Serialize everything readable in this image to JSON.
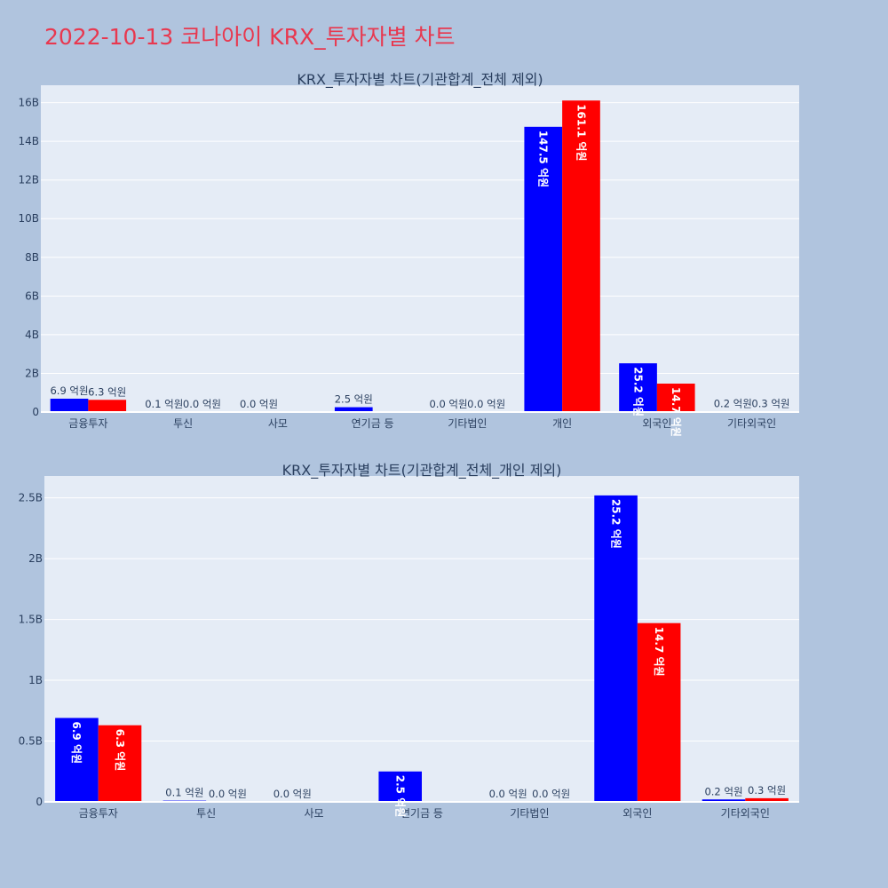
{
  "page": {
    "title": "2022-10-13 코나아이 KRX_투자자별 차트"
  },
  "colors": {
    "series_a": "#0000ff",
    "series_b": "#ff0000",
    "plot_bg": "#e5ecf6",
    "page_bg": "#b0c4de",
    "title": "#e8384f"
  },
  "chart_data": [
    {
      "type": "bar",
      "title": "KRX_투자자별 차트(기관합계_전체 제외)",
      "categories": [
        "금융투자",
        "투신",
        "사모",
        "연기금 등",
        "기타법인",
        "개인",
        "외국인",
        "기타외국인"
      ],
      "series": [
        {
          "values": [
            690000000,
            10000000,
            0,
            250000000,
            0,
            14750000000,
            2520000000,
            20000000
          ],
          "labels": [
            "6.9 억원",
            "0.1 억원",
            "0.0 억원",
            "2.5 억원",
            "0.0 억원",
            "147.5 억원",
            "25.2 억원",
            "0.2 억원"
          ]
        },
        {
          "values": [
            630000000,
            0,
            null,
            null,
            0,
            16110000000,
            1470000000,
            30000000
          ],
          "labels": [
            "6.3 억원",
            "0.0 억원",
            "",
            "",
            "0.0 억원",
            "161.1 억원",
            "14.7 억원",
            "0.3 억원"
          ]
        }
      ],
      "yticks": [
        "0",
        "2B",
        "4B",
        "6B",
        "8B",
        "10B",
        "12B",
        "14B",
        "16B"
      ],
      "ytick_values": [
        0,
        2000000000,
        4000000000,
        6000000000,
        8000000000,
        10000000000,
        12000000000,
        14000000000,
        16000000000
      ],
      "ylim": [
        0,
        16900000000
      ],
      "grid": true,
      "legend": "none"
    },
    {
      "type": "bar",
      "title": "KRX_투자자별 차트(기관합계_전체_개인 제외)",
      "categories": [
        "금융투자",
        "투신",
        "사모",
        "연기금 등",
        "기타법인",
        "외국인",
        "기타외국인"
      ],
      "series": [
        {
          "values": [
            690000000,
            10000000,
            0,
            250000000,
            0,
            2520000000,
            20000000
          ],
          "labels": [
            "6.9 억원",
            "0.1 억원",
            "0.0 억원",
            "2.5 억원",
            "0.0 억원",
            "25.2 억원",
            "0.2 억원"
          ]
        },
        {
          "values": [
            630000000,
            0,
            null,
            null,
            0,
            1470000000,
            30000000
          ],
          "labels": [
            "6.3 억원",
            "0.0 억원",
            "",
            "",
            "0.0 억원",
            "14.7 억원",
            "0.3 억원"
          ]
        }
      ],
      "yticks": [
        "0",
        "0.5B",
        "1B",
        "1.5B",
        "2B",
        "2.5B"
      ],
      "ytick_values": [
        0,
        500000000,
        1000000000,
        1500000000,
        2000000000,
        2500000000
      ],
      "ylim": [
        0,
        2680000000
      ],
      "grid": true,
      "legend": "none"
    }
  ]
}
